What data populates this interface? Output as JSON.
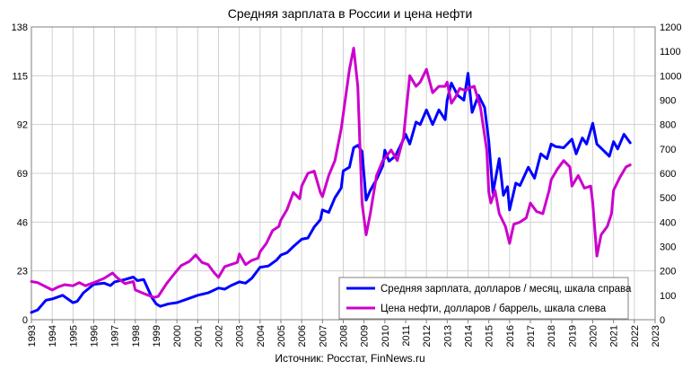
{
  "chart_data": {
    "type": "line",
    "title": "Средняя зарплата в России и цена нефти",
    "source": "Источник: Росстат, FinNews.ru",
    "x_ticks": [
      "1993",
      "1994",
      "1995",
      "1996",
      "1997",
      "1998",
      "1999",
      "2000",
      "2001",
      "2002",
      "2003",
      "2004",
      "2005",
      "2006",
      "2007",
      "2008",
      "2009",
      "2010",
      "2011",
      "2012",
      "2013",
      "2014",
      "2015",
      "2016",
      "2017",
      "2018",
      "2019",
      "2020",
      "2021",
      "2022",
      "2023"
    ],
    "x_range": [
      1993,
      2023
    ],
    "left_axis": {
      "ticks": [
        "0",
        "23",
        "46",
        "69",
        "92",
        "115",
        "138"
      ],
      "range": [
        0,
        138
      ]
    },
    "right_axis": {
      "ticks": [
        "0",
        "100",
        "200",
        "300",
        "400",
        "500",
        "600",
        "700",
        "800",
        "900",
        "1000",
        "1100",
        "1200"
      ],
      "range": [
        0,
        1200
      ]
    },
    "grid": true,
    "legend_position": "bottom-right",
    "series": [
      {
        "name": "Средняя зарплата, долларов / месяц, шкала справа",
        "axis": "right",
        "color": "#0000ff",
        "points": [
          [
            1993.0,
            30
          ],
          [
            1993.3,
            40
          ],
          [
            1993.7,
            80
          ],
          [
            1994.0,
            85
          ],
          [
            1994.5,
            100
          ],
          [
            1995.0,
            70
          ],
          [
            1995.2,
            75
          ],
          [
            1995.5,
            110
          ],
          [
            1996.0,
            145
          ],
          [
            1996.5,
            150
          ],
          [
            1996.8,
            140
          ],
          [
            1997.0,
            155
          ],
          [
            1997.5,
            165
          ],
          [
            1997.9,
            175
          ],
          [
            1998.1,
            160
          ],
          [
            1998.4,
            165
          ],
          [
            1998.8,
            90
          ],
          [
            1999.0,
            65
          ],
          [
            1999.2,
            55
          ],
          [
            1999.6,
            65
          ],
          [
            2000.0,
            70
          ],
          [
            2000.5,
            85
          ],
          [
            2001.0,
            100
          ],
          [
            2001.5,
            110
          ],
          [
            2002.0,
            130
          ],
          [
            2002.3,
            125
          ],
          [
            2002.6,
            140
          ],
          [
            2003.0,
            155
          ],
          [
            2003.3,
            150
          ],
          [
            2003.6,
            170
          ],
          [
            2004.0,
            215
          ],
          [
            2004.4,
            220
          ],
          [
            2004.8,
            245
          ],
          [
            2005.0,
            265
          ],
          [
            2005.3,
            275
          ],
          [
            2005.6,
            300
          ],
          [
            2006.0,
            330
          ],
          [
            2006.3,
            335
          ],
          [
            2006.6,
            380
          ],
          [
            2006.9,
            410
          ],
          [
            2007.0,
            450
          ],
          [
            2007.3,
            440
          ],
          [
            2007.6,
            500
          ],
          [
            2007.9,
            540
          ],
          [
            2008.0,
            610
          ],
          [
            2008.3,
            625
          ],
          [
            2008.5,
            705
          ],
          [
            2008.7,
            715
          ],
          [
            2008.9,
            690
          ],
          [
            2009.1,
            490
          ],
          [
            2009.3,
            530
          ],
          [
            2009.6,
            575
          ],
          [
            2009.9,
            630
          ],
          [
            2010.0,
            695
          ],
          [
            2010.2,
            650
          ],
          [
            2010.5,
            670
          ],
          [
            2010.9,
            740
          ],
          [
            2011.0,
            760
          ],
          [
            2011.2,
            720
          ],
          [
            2011.5,
            810
          ],
          [
            2011.7,
            800
          ],
          [
            2012.0,
            860
          ],
          [
            2012.3,
            800
          ],
          [
            2012.6,
            860
          ],
          [
            2012.9,
            820
          ],
          [
            2013.0,
            900
          ],
          [
            2013.2,
            970
          ],
          [
            2013.5,
            920
          ],
          [
            2013.8,
            900
          ],
          [
            2014.0,
            1010
          ],
          [
            2014.2,
            850
          ],
          [
            2014.5,
            920
          ],
          [
            2014.8,
            870
          ],
          [
            2015.0,
            730
          ],
          [
            2015.2,
            520
          ],
          [
            2015.5,
            660
          ],
          [
            2015.7,
            510
          ],
          [
            2015.9,
            545
          ],
          [
            2016.0,
            450
          ],
          [
            2016.3,
            560
          ],
          [
            2016.5,
            550
          ],
          [
            2016.9,
            625
          ],
          [
            2017.0,
            610
          ],
          [
            2017.2,
            580
          ],
          [
            2017.5,
            680
          ],
          [
            2017.8,
            660
          ],
          [
            2018.0,
            720
          ],
          [
            2018.2,
            710
          ],
          [
            2018.6,
            705
          ],
          [
            2019.0,
            740
          ],
          [
            2019.2,
            680
          ],
          [
            2019.5,
            745
          ],
          [
            2019.7,
            720
          ],
          [
            2020.0,
            805
          ],
          [
            2020.2,
            720
          ],
          [
            2020.5,
            695
          ],
          [
            2020.8,
            670
          ],
          [
            2021.0,
            730
          ],
          [
            2021.2,
            700
          ],
          [
            2021.5,
            760
          ],
          [
            2021.8,
            725
          ]
        ]
      },
      {
        "name": "Цена нефти, долларов / баррель, шкала слева",
        "axis": "left",
        "color": "#cc00cc",
        "points": [
          [
            1993.0,
            18
          ],
          [
            1993.3,
            17.5
          ],
          [
            1993.7,
            15.5
          ],
          [
            1994.0,
            14
          ],
          [
            1994.3,
            15.5
          ],
          [
            1994.6,
            16.5
          ],
          [
            1995.0,
            16
          ],
          [
            1995.3,
            17.5
          ],
          [
            1995.6,
            16
          ],
          [
            1996.0,
            17.5
          ],
          [
            1996.5,
            19.5
          ],
          [
            1996.9,
            22
          ],
          [
            1997.1,
            20
          ],
          [
            1997.5,
            17
          ],
          [
            1997.9,
            18
          ],
          [
            1998.0,
            14
          ],
          [
            1998.5,
            12
          ],
          [
            1998.9,
            10.5
          ],
          [
            1999.1,
            11
          ],
          [
            1999.5,
            17
          ],
          [
            1999.9,
            22
          ],
          [
            2000.2,
            25.5
          ],
          [
            2000.6,
            27.5
          ],
          [
            2000.9,
            30.5
          ],
          [
            2001.2,
            27
          ],
          [
            2001.5,
            26
          ],
          [
            2001.8,
            22
          ],
          [
            2002.0,
            20
          ],
          [
            2002.3,
            25
          ],
          [
            2002.6,
            26
          ],
          [
            2002.9,
            27
          ],
          [
            2003.0,
            31
          ],
          [
            2003.3,
            26
          ],
          [
            2003.6,
            28
          ],
          [
            2003.9,
            29
          ],
          [
            2004.0,
            32
          ],
          [
            2004.3,
            36
          ],
          [
            2004.6,
            42
          ],
          [
            2004.9,
            44
          ],
          [
            2005.0,
            47
          ],
          [
            2005.3,
            52
          ],
          [
            2005.6,
            60
          ],
          [
            2005.9,
            57
          ],
          [
            2006.0,
            63
          ],
          [
            2006.3,
            69
          ],
          [
            2006.6,
            70
          ],
          [
            2006.9,
            60
          ],
          [
            2007.0,
            58
          ],
          [
            2007.3,
            68
          ],
          [
            2007.6,
            75
          ],
          [
            2007.9,
            90
          ],
          [
            2008.0,
            97
          ],
          [
            2008.3,
            118
          ],
          [
            2008.5,
            128
          ],
          [
            2008.7,
            110
          ],
          [
            2008.9,
            55
          ],
          [
            2009.1,
            40
          ],
          [
            2009.3,
            50
          ],
          [
            2009.6,
            68
          ],
          [
            2009.9,
            75
          ],
          [
            2010.0,
            76
          ],
          [
            2010.3,
            80
          ],
          [
            2010.6,
            75
          ],
          [
            2010.9,
            86
          ],
          [
            2011.0,
            96
          ],
          [
            2011.2,
            115
          ],
          [
            2011.5,
            110
          ],
          [
            2011.7,
            112
          ],
          [
            2012.0,
            118
          ],
          [
            2012.3,
            107
          ],
          [
            2012.6,
            110
          ],
          [
            2012.9,
            110
          ],
          [
            2013.0,
            112
          ],
          [
            2013.2,
            102
          ],
          [
            2013.4,
            105
          ],
          [
            2013.6,
            109
          ],
          [
            2013.9,
            108
          ],
          [
            2014.0,
            109
          ],
          [
            2014.3,
            110
          ],
          [
            2014.6,
            100
          ],
          [
            2014.9,
            80
          ],
          [
            2015.0,
            60
          ],
          [
            2015.1,
            55
          ],
          [
            2015.3,
            61
          ],
          [
            2015.5,
            50
          ],
          [
            2015.8,
            44
          ],
          [
            2016.0,
            36
          ],
          [
            2016.2,
            45
          ],
          [
            2016.5,
            46
          ],
          [
            2016.8,
            48
          ],
          [
            2017.0,
            55
          ],
          [
            2017.3,
            51
          ],
          [
            2017.6,
            50
          ],
          [
            2017.9,
            61
          ],
          [
            2018.0,
            66
          ],
          [
            2018.3,
            71
          ],
          [
            2018.6,
            75
          ],
          [
            2018.9,
            72
          ],
          [
            2019.0,
            63
          ],
          [
            2019.3,
            68
          ],
          [
            2019.6,
            62
          ],
          [
            2019.9,
            63
          ],
          [
            2020.0,
            55
          ],
          [
            2020.2,
            30
          ],
          [
            2020.4,
            40
          ],
          [
            2020.7,
            44
          ],
          [
            2020.9,
            50
          ],
          [
            2021.0,
            61
          ],
          [
            2021.3,
            67
          ],
          [
            2021.6,
            72
          ],
          [
            2021.8,
            73
          ]
        ]
      }
    ]
  }
}
